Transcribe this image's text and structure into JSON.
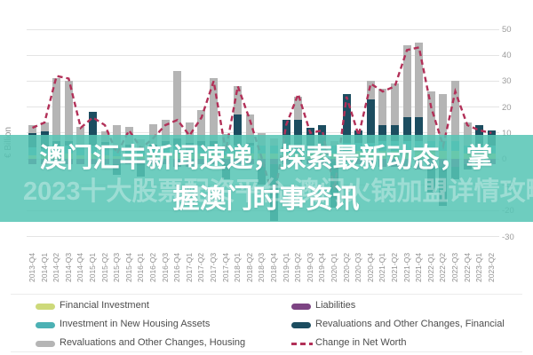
{
  "overlay": {
    "title": "澳门汇丰新闻速递，探索最新动态，掌握澳门时事资讯",
    "watermark": "2023十大股票配资平台,澳门火锅加盟详情攻略",
    "band_color": "#56c5b4"
  },
  "chart_data": {
    "type": "bar",
    "subtype": "stacked-bar-with-line",
    "title": "",
    "xlabel": "",
    "ylabel": "€ Billion",
    "ylim": [
      -30,
      50
    ],
    "yticks": [
      50,
      40,
      30,
      20,
      10,
      0,
      -10,
      -20,
      -30
    ],
    "grid": true,
    "legend_position": "bottom",
    "categories": [
      "2013-Q4",
      "2014-Q1",
      "2014-Q2",
      "2014-Q3",
      "2014-Q4",
      "2015-Q1",
      "2015-Q2",
      "2015-Q3",
      "2015-Q4",
      "2016-Q1",
      "2016-Q2",
      "2016-Q3",
      "2016-Q4",
      "2017-Q1",
      "2017-Q2",
      "2017-Q3",
      "2017-Q4",
      "2018-Q1",
      "2018-Q2",
      "2018-Q3",
      "2018-Q4",
      "2019-Q1",
      "2019-Q2",
      "2019-Q3",
      "2019-Q4",
      "2020-Q1",
      "2020-Q2",
      "2020-Q3",
      "2020-Q4",
      "2021-Q1",
      "2021-Q2",
      "2021-Q3",
      "2021-Q4",
      "2022-Q1",
      "2022-Q2",
      "2022-Q3",
      "2022-Q4",
      "2023-Q1",
      "2023-Q2"
    ],
    "series": [
      {
        "name": "Financial Investment",
        "type": "bar",
        "color": "#cdd97a",
        "values": [
          1.5,
          1.5,
          2,
          2,
          1.5,
          2,
          1.5,
          1,
          1.5,
          1.5,
          1.5,
          2,
          2,
          2,
          2,
          2,
          1.5,
          2,
          2,
          2,
          2,
          2,
          2,
          2,
          2,
          2,
          3,
          3,
          3,
          3,
          3,
          3,
          3,
          3,
          3,
          3,
          2,
          2,
          2
        ]
      },
      {
        "name": "Investment in New Housing Assets",
        "type": "bar",
        "color": "#4cb1b4",
        "values": [
          3,
          2.5,
          3,
          3,
          3,
          3,
          3,
          3,
          3,
          3,
          3,
          3,
          3,
          3,
          3,
          3,
          3,
          3,
          3,
          3,
          3,
          3,
          3,
          3,
          3,
          3,
          3,
          3,
          3,
          4,
          4,
          4,
          4,
          4,
          4,
          4,
          3,
          3,
          3
        ]
      },
      {
        "name": "Revaluations and Other Changes, Housing",
        "type": "bar",
        "color": "#b5b5b5",
        "values": [
          3,
          3.5,
          24,
          23,
          8,
          0,
          4,
          9,
          7,
          3,
          8,
          8,
          26,
          8,
          12,
          24,
          5,
          11,
          11,
          5,
          3,
          0,
          9,
          0,
          0,
          2,
          0,
          0,
          7,
          14,
          16,
          28,
          29,
          19,
          18,
          23,
          9,
          0,
          0
        ]
      },
      {
        "name": "Liabilities",
        "type": "bar",
        "color": "#7d4483",
        "values": [
          -2,
          -2,
          -2,
          -2,
          -2,
          -2,
          -2,
          -2,
          -2,
          -2,
          -2,
          -2,
          -3,
          -3,
          -2,
          -2,
          -2,
          -2,
          -2,
          -2,
          -2,
          -2,
          -2,
          -2,
          -2,
          -1,
          -1,
          -2,
          -2,
          -3,
          -3,
          -3,
          -4,
          -3,
          -3,
          -3,
          -2,
          -2,
          -2
        ]
      },
      {
        "name": "Revaluations and Other Changes, Financial",
        "type": "bar",
        "color": "#1c4d60",
        "values": [
          5.5,
          6.5,
          2,
          2,
          0,
          13,
          2,
          -4,
          1,
          -5,
          1,
          2,
          3,
          1,
          2,
          2,
          -6,
          12,
          1,
          -8,
          -22,
          10,
          10,
          7,
          8,
          -18,
          19,
          5,
          17,
          6,
          6,
          9,
          9,
          -10,
          -15,
          -5,
          -2,
          8,
          6
        ]
      },
      {
        "name": "Change in Net Worth",
        "type": "line",
        "dashed": true,
        "color": "#b23058",
        "values": [
          12,
          14,
          32,
          31,
          12,
          16,
          13,
          2,
          11,
          4,
          8,
          13,
          15,
          9,
          16,
          30,
          3,
          28,
          15,
          0,
          -16,
          13,
          25,
          10,
          11,
          -12,
          24,
          9,
          29,
          26,
          28,
          42,
          43,
          20,
          5,
          26,
          13,
          11,
          10
        ]
      }
    ],
    "legend_columns": {
      "left": [
        0,
        1,
        2
      ],
      "right": [
        3,
        4,
        5
      ]
    }
  }
}
